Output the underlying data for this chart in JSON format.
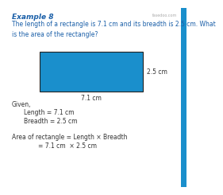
{
  "title": "Example 8",
  "watermark": "fasedoo.com",
  "question": "The length of a rectangle is 7.1 cm and its breadth is 2.5 cm. What\nis the area of the rectangle?",
  "rect_color": "#1a8fcc",
  "rect_border_color": "#222222",
  "length_label": "7.1 cm",
  "breadth_label": "2.5 cm",
  "given_text": "Given,",
  "length_given": "Length = 7.1 cm",
  "breadth_given": "Breadth = 2.5 cm",
  "formula_line1": "Area of rectangle = Length × Breadth",
  "formula_line2": "= 7.1 cm  × 2.5 cm",
  "bg_color": "#ffffff",
  "title_color": "#1a5fa8",
  "question_color": "#1a5fa8",
  "body_color": "#333333",
  "strip_color": "#1a8fcc"
}
